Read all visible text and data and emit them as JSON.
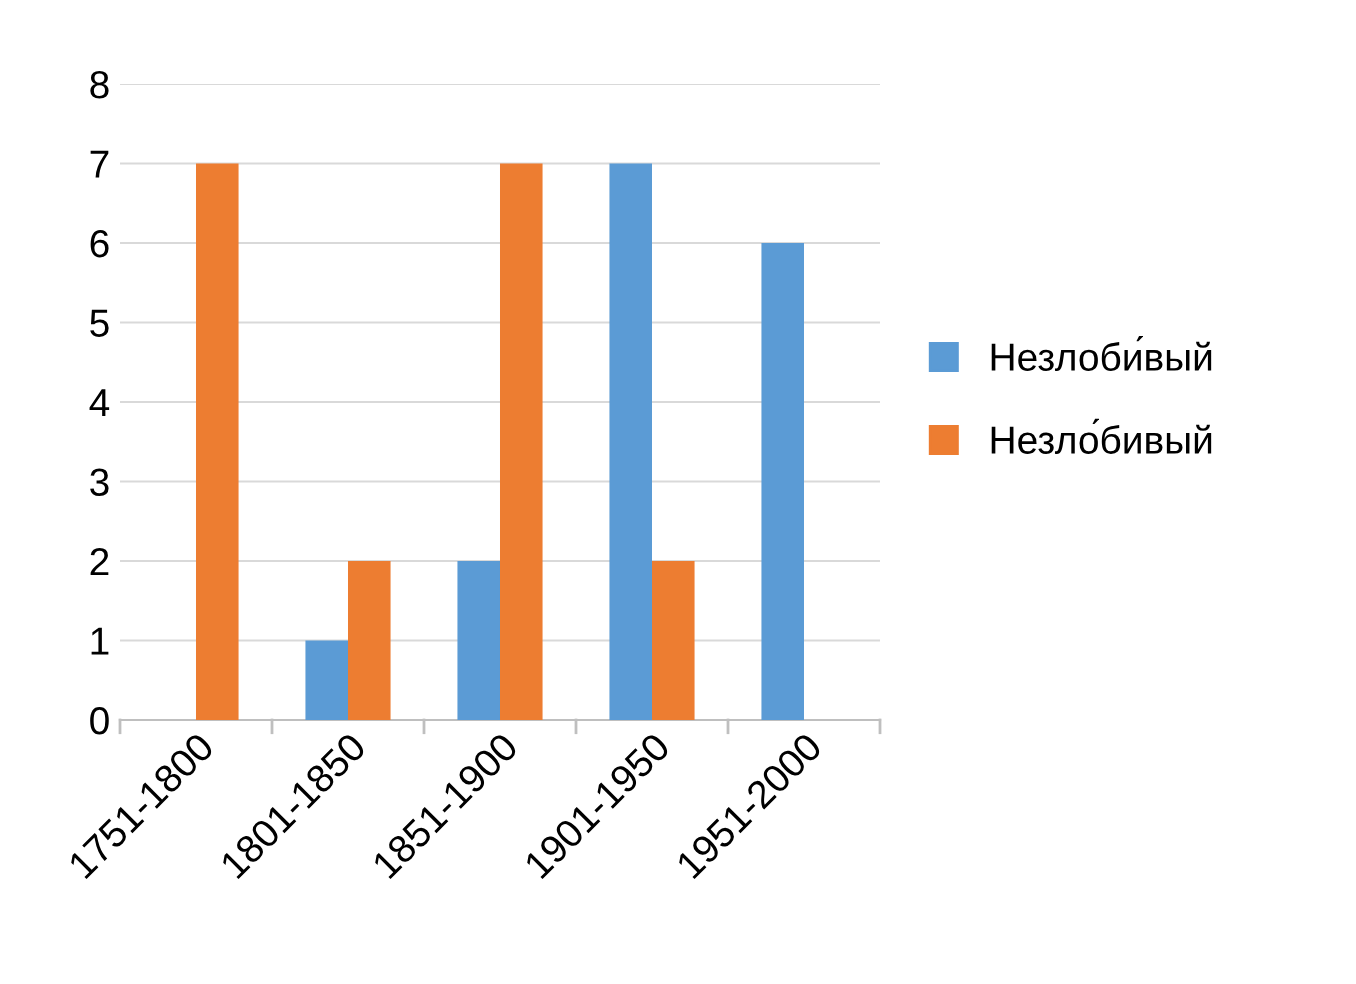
{
  "chart_data": {
    "type": "bar",
    "categories": [
      "1751-1800",
      "1801-1850",
      "1851-1900",
      "1901-1950",
      "1951-2000"
    ],
    "series": [
      {
        "name": "Незлоби́вый",
        "color": "#5b9bd5",
        "values": [
          0,
          1,
          2,
          7,
          6
        ]
      },
      {
        "name": "Незло́бивый",
        "color": "#ed7d31",
        "values": [
          7,
          2,
          7,
          2,
          0
        ]
      }
    ],
    "ylim": [
      0,
      8
    ],
    "yticks": [
      0,
      1,
      2,
      3,
      4,
      5,
      6,
      7,
      8
    ],
    "grid": "y",
    "legend": "right"
  }
}
